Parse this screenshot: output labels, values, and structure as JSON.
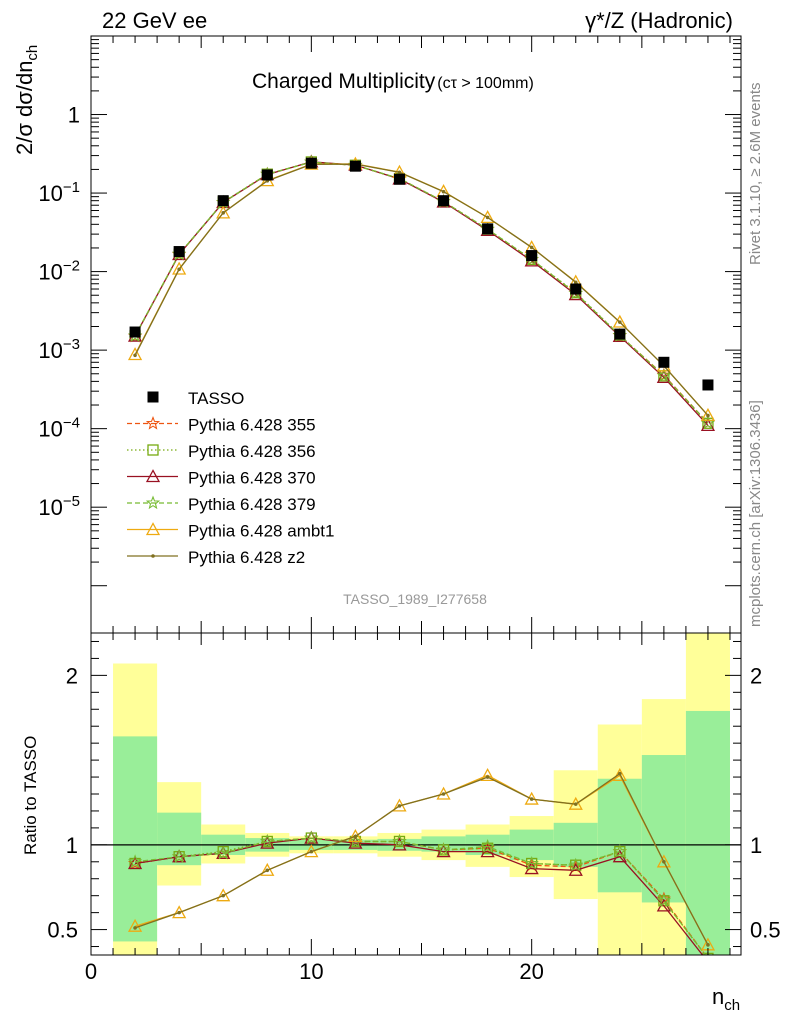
{
  "header": {
    "left": "22 GeV ee",
    "right": "γ*/Z (Hadronic)"
  },
  "side_labels": {
    "rivet": "Rivet 3.1.10, ≥ 2.6M events",
    "mcplots": "mcplots.cern.ch [arXiv:1306.3436]"
  },
  "chart_data": {
    "type": "line",
    "title": "Charged Multiplicity",
    "title_suffix": "(cτ > 100mm)",
    "analysis_tag": "TASSO_1989_I277658",
    "xlabel": "n_ch",
    "ylabel": "2/σ dσ/dn_ch",
    "ratio_ylabel": "Ratio to TASSO",
    "xlim": [
      0,
      29.5
    ],
    "ylim": [
      2.5e-07,
      10
    ],
    "yscale": "log",
    "ratio_ylim": [
      0.35,
      2.25
    ],
    "x_ticks": [
      0,
      10,
      20
    ],
    "y_tick_labels": [
      {
        "value": 1,
        "base": "1",
        "exp": ""
      },
      {
        "value": 0.1,
        "base": "10",
        "exp": "−1"
      },
      {
        "value": 0.01,
        "base": "10",
        "exp": "−2"
      },
      {
        "value": 0.001,
        "base": "10",
        "exp": "−3"
      },
      {
        "value": 0.0001,
        "base": "10",
        "exp": "−4"
      },
      {
        "value": 1e-05,
        "base": "10",
        "exp": "−5"
      }
    ],
    "ratio_ticks": [
      0.5,
      1,
      2
    ],
    "x": [
      2,
      4,
      6,
      8,
      10,
      12,
      14,
      16,
      18,
      20,
      22,
      24,
      26,
      28
    ],
    "data": {
      "name": "TASSO",
      "values": [
        0.0017,
        0.018,
        0.08,
        0.17,
        0.24,
        0.22,
        0.15,
        0.08,
        0.035,
        0.016,
        0.006,
        0.0016,
        0.0007,
        0.00036
      ]
    },
    "ratio_bands": [
      {
        "x0": 1,
        "x1": 3,
        "green": [
          0.43,
          1.64
        ],
        "yellow": [
          0.33,
          2.07
        ]
      },
      {
        "x0": 3,
        "x1": 5,
        "green": [
          0.88,
          1.19
        ],
        "yellow": [
          0.76,
          1.37
        ]
      },
      {
        "x0": 5,
        "x1": 7,
        "green": [
          0.94,
          1.06
        ],
        "yellow": [
          0.89,
          1.12
        ]
      },
      {
        "x0": 7,
        "x1": 9,
        "green": [
          0.96,
          1.04
        ],
        "yellow": [
          0.93,
          1.07
        ]
      },
      {
        "x0": 9,
        "x1": 11,
        "green": [
          0.97,
          1.03
        ],
        "yellow": [
          0.95,
          1.05
        ]
      },
      {
        "x0": 11,
        "x1": 13,
        "green": [
          0.97,
          1.03
        ],
        "yellow": [
          0.95,
          1.05
        ]
      },
      {
        "x0": 13,
        "x1": 15,
        "green": [
          0.965,
          1.035
        ],
        "yellow": [
          0.93,
          1.07
        ]
      },
      {
        "x0": 15,
        "x1": 17,
        "green": [
          0.96,
          1.05
        ],
        "yellow": [
          0.91,
          1.09
        ]
      },
      {
        "x0": 17,
        "x1": 19,
        "green": [
          0.94,
          1.06
        ],
        "yellow": [
          0.87,
          1.12
        ]
      },
      {
        "x0": 19,
        "x1": 21,
        "green": [
          0.91,
          1.09
        ],
        "yellow": [
          0.81,
          1.17
        ]
      },
      {
        "x0": 21,
        "x1": 23,
        "green": [
          0.87,
          1.13
        ],
        "yellow": [
          0.68,
          1.44
        ]
      },
      {
        "x0": 23,
        "x1": 25,
        "green": [
          0.72,
          1.39
        ],
        "yellow": [
          0.28,
          1.71
        ]
      },
      {
        "x0": 25,
        "x1": 27,
        "green": [
          0.66,
          1.53
        ],
        "yellow": [
          0.28,
          1.86
        ]
      },
      {
        "x0": 27,
        "x1": 29,
        "green": [
          0.28,
          1.79
        ],
        "yellow": [
          0.28,
          2.25
        ]
      }
    ],
    "series": [
      {
        "name": "Pythia 6.428 355",
        "color": "#ee5511",
        "dash": "5,3",
        "marker": "star",
        "values": [
          0.0015,
          0.0165,
          0.076,
          0.174,
          0.248,
          0.225,
          0.153,
          0.078,
          0.0345,
          0.0142,
          0.0053,
          0.00153,
          0.00048,
          0.000118
        ],
        "ratio": [
          0.89,
          0.93,
          0.95,
          1.02,
          1.04,
          1.02,
          1.02,
          0.97,
          0.98,
          0.88,
          0.87,
          0.96,
          0.68,
          0.33
        ]
      },
      {
        "name": "Pythia 6.428 356",
        "color": "#77aa11",
        "dash": "1.5,2.5",
        "marker": "square",
        "values": [
          0.00152,
          0.0166,
          0.077,
          0.174,
          0.249,
          0.226,
          0.153,
          0.078,
          0.0347,
          0.0143,
          0.0054,
          0.00155,
          0.00047,
          0.000117
        ],
        "ratio": [
          0.89,
          0.93,
          0.96,
          1.02,
          1.04,
          1.02,
          1.02,
          0.97,
          0.98,
          0.89,
          0.88,
          0.96,
          0.67,
          0.33
        ]
      },
      {
        "name": "Pythia 6.428 370",
        "color": "#991122",
        "dash": "",
        "marker": "triangle",
        "values": [
          0.00151,
          0.0165,
          0.076,
          0.172,
          0.25,
          0.227,
          0.151,
          0.077,
          0.0335,
          0.0137,
          0.0051,
          0.0015,
          0.00045,
          0.00011
        ],
        "ratio": [
          0.89,
          0.93,
          0.95,
          1.01,
          1.04,
          1.01,
          1.0,
          0.96,
          0.96,
          0.86,
          0.85,
          0.93,
          0.64,
          0.31
        ]
      },
      {
        "name": "Pythia 6.428 379",
        "color": "#77bb33",
        "dash": "5,3",
        "marker": "star",
        "values": [
          0.00152,
          0.0167,
          0.076,
          0.174,
          0.248,
          0.226,
          0.153,
          0.078,
          0.0346,
          0.0143,
          0.0053,
          0.00154,
          0.00047,
          0.000118
        ],
        "ratio": [
          0.9,
          0.93,
          0.95,
          1.02,
          1.04,
          1.02,
          1.02,
          0.97,
          0.99,
          0.89,
          0.88,
          0.96,
          0.67,
          0.33
        ]
      },
      {
        "name": "Pythia 6.428 ambt1",
        "color": "#eeaa11",
        "dash": "",
        "marker": "triangle",
        "values": [
          0.00088,
          0.0108,
          0.056,
          0.144,
          0.234,
          0.235,
          0.185,
          0.105,
          0.049,
          0.0203,
          0.0074,
          0.00228,
          0.00063,
          0.000148
        ],
        "ratio": [
          0.52,
          0.6,
          0.7,
          0.85,
          0.96,
          1.05,
          1.23,
          1.3,
          1.41,
          1.27,
          1.24,
          1.41,
          0.9,
          0.41
        ]
      },
      {
        "name": "Pythia 6.428 z2",
        "color": "#807020",
        "dash": "",
        "marker": "dot",
        "values": [
          0.00086,
          0.0107,
          0.056,
          0.143,
          0.232,
          0.234,
          0.184,
          0.104,
          0.0489,
          0.0203,
          0.0073,
          0.00227,
          0.00063,
          0.000147
        ],
        "ratio": [
          0.51,
          0.6,
          0.7,
          0.85,
          0.96,
          1.05,
          1.23,
          1.3,
          1.4,
          1.27,
          1.24,
          1.42,
          0.9,
          0.41
        ]
      }
    ]
  }
}
